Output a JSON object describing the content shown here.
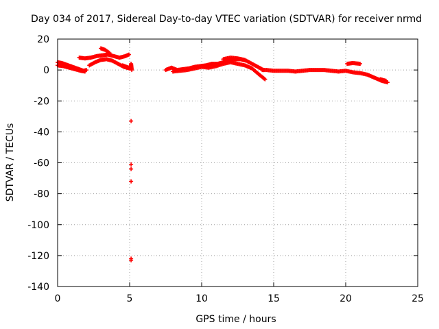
{
  "chart_data": {
    "type": "scatter",
    "title": "Day 034 of 2017, Sidereal Day-to-day VTEC variation (SDTVAR) for receiver nrmd",
    "xlabel": "GPS time / hours",
    "ylabel": "SDTVAR / TECUs",
    "xlim": [
      0,
      25
    ],
    "ylim": [
      -140,
      20
    ],
    "xticks": [
      0,
      5,
      10,
      15,
      20,
      25
    ],
    "yticks": [
      20,
      0,
      -20,
      -40,
      -60,
      -80,
      -100,
      -120,
      -140
    ],
    "grid": true,
    "marker": "plus",
    "marker_color": "#ff0000",
    "series": [
      {
        "name": "SDTVAR",
        "arcs": [
          [
            [
              0,
              5
            ],
            [
              0.3,
              4.5
            ],
            [
              0.6,
              3.5
            ],
            [
              0.9,
              2.5
            ],
            [
              1.2,
              1.5
            ],
            [
              1.5,
              0.5
            ],
            [
              1.8,
              -0.5
            ],
            [
              2.0,
              0
            ]
          ],
          [
            [
              0,
              3
            ],
            [
              0.4,
              2.5
            ],
            [
              0.8,
              1.5
            ],
            [
              1.2,
              0.5
            ],
            [
              1.6,
              -0.5
            ],
            [
              1.9,
              -1
            ]
          ],
          [
            [
              1.5,
              8
            ],
            [
              1.9,
              7.5
            ],
            [
              2.3,
              8
            ],
            [
              2.7,
              9
            ],
            [
              3.1,
              9.5
            ],
            [
              3.5,
              10
            ],
            [
              3.9,
              9
            ],
            [
              4.3,
              8
            ],
            [
              4.7,
              9
            ],
            [
              4.95,
              10
            ]
          ],
          [
            [
              2.2,
              3
            ],
            [
              2.6,
              5
            ],
            [
              3.0,
              6.5
            ],
            [
              3.4,
              7
            ],
            [
              3.8,
              6
            ],
            [
              4.2,
              4
            ],
            [
              4.6,
              2
            ],
            [
              5.0,
              1
            ]
          ],
          [
            [
              3.0,
              14
            ],
            [
              3.3,
              13
            ],
            [
              3.6,
              11
            ]
          ],
          [
            [
              4.5,
              3
            ],
            [
              4.8,
              2
            ],
            [
              5.05,
              1
            ],
            [
              5.1,
              4
            ],
            [
              5.15,
              0
            ]
          ],
          [
            [
              7.5,
              0
            ],
            [
              7.9,
              1.5
            ],
            [
              8.3,
              0
            ],
            [
              8.7,
              0.5
            ],
            [
              9.1,
              1
            ],
            [
              9.5,
              2
            ],
            [
              9.9,
              2.5
            ],
            [
              10.3,
              3
            ],
            [
              10.7,
              4
            ],
            [
              11.1,
              4
            ],
            [
              11.5,
              5
            ],
            [
              11.9,
              6
            ],
            [
              12.3,
              7
            ],
            [
              12.7,
              7
            ],
            [
              13.1,
              6
            ],
            [
              13.5,
              4
            ],
            [
              13.9,
              2
            ],
            [
              14.3,
              0
            ]
          ],
          [
            [
              8.0,
              -1
            ],
            [
              8.5,
              -0.5
            ],
            [
              9.0,
              0
            ],
            [
              9.5,
              1
            ],
            [
              10.0,
              2
            ],
            [
              10.5,
              1.5
            ],
            [
              11.0,
              2.5
            ],
            [
              11.5,
              4
            ],
            [
              12.0,
              5
            ],
            [
              12.5,
              4
            ],
            [
              13.0,
              3
            ],
            [
              13.5,
              1
            ],
            [
              14.0,
              -3
            ],
            [
              14.4,
              -6
            ]
          ],
          [
            [
              11.5,
              7
            ],
            [
              12.0,
              8
            ],
            [
              12.5,
              7.5
            ],
            [
              13.0,
              6.5
            ]
          ],
          [
            [
              14.2,
              0
            ],
            [
              14.5,
              0
            ],
            [
              15.0,
              -0.5
            ],
            [
              15.5,
              -0.5
            ],
            [
              16.0,
              -0.5
            ],
            [
              16.5,
              -1
            ],
            [
              17.0,
              -0.5
            ],
            [
              17.5,
              0
            ],
            [
              18.0,
              0
            ],
            [
              18.5,
              0
            ],
            [
              19.0,
              -0.5
            ],
            [
              19.5,
              -1
            ],
            [
              20.0,
              -0.5
            ],
            [
              20.5,
              -1.5
            ],
            [
              21.0,
              -2
            ],
            [
              21.5,
              -3
            ],
            [
              22.0,
              -5
            ],
            [
              22.5,
              -7
            ],
            [
              22.9,
              -8
            ]
          ],
          [
            [
              20.1,
              4
            ],
            [
              20.5,
              4.5
            ],
            [
              21.0,
              4
            ]
          ],
          [
            [
              22.4,
              -6
            ],
            [
              22.8,
              -7
            ]
          ]
        ],
        "outliers": [
          [
            5.1,
            -33
          ],
          [
            5.1,
            -61
          ],
          [
            5.1,
            -64
          ],
          [
            5.1,
            -72
          ],
          [
            5.1,
            -122
          ],
          [
            5.1,
            -123
          ]
        ]
      }
    ]
  }
}
